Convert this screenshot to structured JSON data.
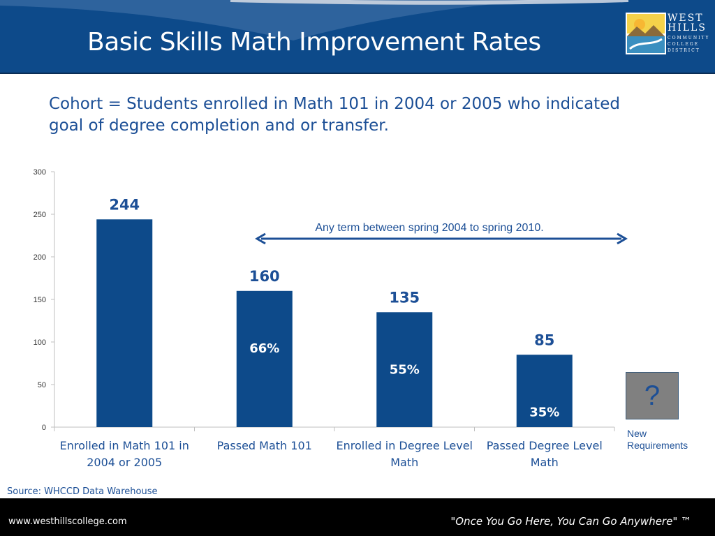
{
  "title": "Basic Skills Math Improvement Rates",
  "subtitle": "Cohort = Students enrolled in Math 101 in 2004 or 2005 who indicated goal of degree completion and or transfer.",
  "logo": {
    "line1": "WEST",
    "line2": "HILLS",
    "line3": "COMMUNITY",
    "line4": "COLLEGE",
    "line5": "DISTRICT"
  },
  "chart_data": {
    "type": "bar",
    "title": "",
    "xlabel": "",
    "ylabel": "",
    "ylim": [
      0,
      300
    ],
    "yticks": [
      0,
      50,
      100,
      150,
      200,
      250,
      300
    ],
    "grid": false,
    "categories": [
      [
        "Enrolled in Math 101 in",
        "2004 or 2005"
      ],
      [
        "Passed Math 101"
      ],
      [
        "Enrolled in Degree Level",
        "Math"
      ],
      [
        "Passed Degree Level",
        "Math"
      ]
    ],
    "values": [
      244,
      160,
      135,
      85
    ],
    "value_labels": [
      "244",
      "160",
      "135",
      "85"
    ],
    "percent_labels": [
      "",
      "66%",
      "55%",
      "35%"
    ],
    "bar_color": "#0d4a8a",
    "annotation": {
      "text": "Any term between spring 2004 to spring 2010.",
      "arrow": "double-headed",
      "color": "#1c4f96"
    }
  },
  "side_box": {
    "symbol": "?",
    "label_line1": "New",
    "label_line2": "Requirements"
  },
  "source": "Source: WHCCD Data Warehouse",
  "footer": {
    "url": "www.westhillscollege.com",
    "tagline": "\"Once You Go Here, You Can Go Anywhere\" ™"
  },
  "colors": {
    "header": "#0d4a8a",
    "accent_text": "#1c4f96",
    "footer": "#000000"
  }
}
